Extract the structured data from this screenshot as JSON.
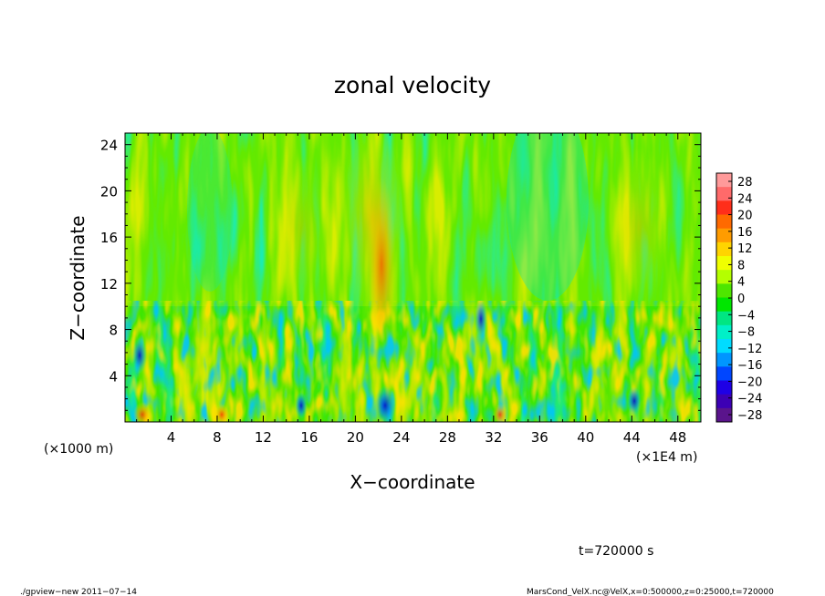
{
  "chart_data": {
    "type": "heatmap",
    "title": "zonal velocity",
    "xlabel": "X−coordinate",
    "ylabel": "Z−coordinate",
    "x_unit_left": "(×1000 m)",
    "x_unit_right": "(×1E4 m)",
    "xlim": [
      0,
      50
    ],
    "ylim": [
      0,
      25
    ],
    "x_ticks": [
      4,
      8,
      12,
      16,
      20,
      24,
      28,
      32,
      36,
      40,
      44,
      48
    ],
    "y_ticks": [
      4,
      8,
      12,
      16,
      20,
      24
    ],
    "colorbar": {
      "labels": [
        "28",
        "24",
        "20",
        "16",
        "12",
        "8",
        "4",
        "0",
        "−4",
        "−8",
        "−12",
        "−16",
        "−20",
        "−24",
        "−28"
      ],
      "colors": [
        "#ff9a9a",
        "#ff6a6a",
        "#ff2e1a",
        "#ff6a00",
        "#ff9c00",
        "#ffd400",
        "#f0ff00",
        "#b4ff00",
        "#4ee600",
        "#00e600",
        "#00e682",
        "#00f0c8",
        "#00dcff",
        "#0096ff",
        "#0046ff",
        "#1e00e6",
        "#3c00b4",
        "#5a148c"
      ]
    },
    "field_note": "Low-level (z<10) alternating positive/negative cells; strong positive band near x=22, z 8–22; mostly 0 to +8 above.",
    "time_label": "t=720000 s"
  },
  "footer": {
    "left": "./gpview−new   2011−07−14",
    "right": "MarsCond_VelX.nc@VelX,x=0:500000,z=0:25000,t=720000"
  }
}
